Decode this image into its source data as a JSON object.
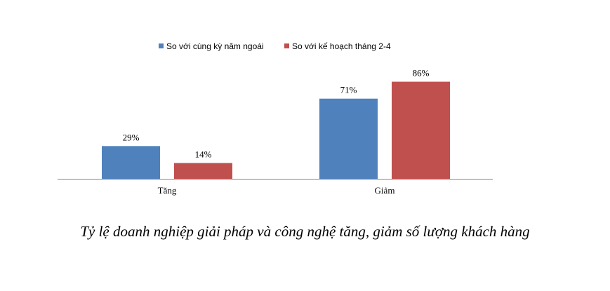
{
  "caption": "Tỷ lệ doanh nghiệp giải pháp và công nghệ tăng, giảm số lượng khách hàng",
  "chart_data": {
    "type": "bar",
    "title": "",
    "xlabel": "",
    "ylabel": "",
    "categories": [
      "Tăng",
      "Giảm"
    ],
    "series": [
      {
        "name": "So với cùng kỳ năm ngoái",
        "values": [
          29,
          71
        ],
        "labels": [
          "29%",
          "71%"
        ],
        "color": "#4f81bd"
      },
      {
        "name": "So với kế hoạch tháng 2-4",
        "values": [
          14,
          86
        ],
        "labels": [
          "14%",
          "86%"
        ],
        "color": "#c0504d"
      }
    ],
    "ylim": [
      0,
      100
    ],
    "grid": false,
    "legend_position": "top-center"
  }
}
